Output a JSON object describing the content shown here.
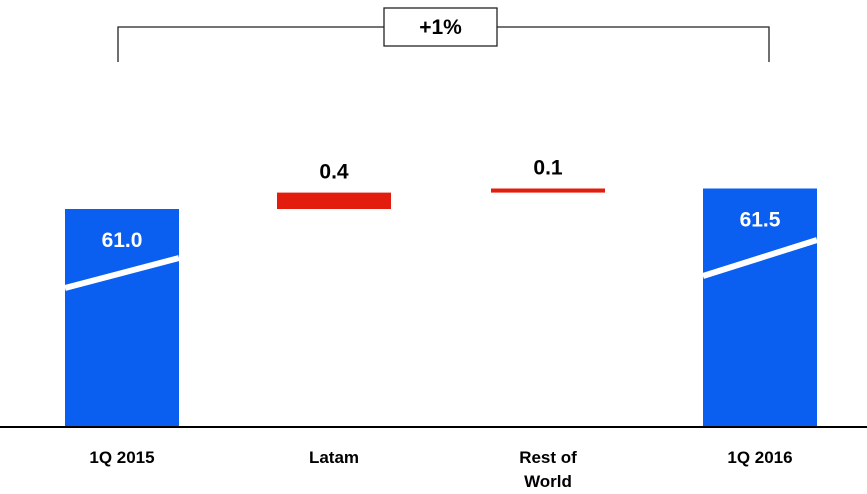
{
  "chart_data": {
    "type": "bar",
    "subtype": "waterfall",
    "categories": [
      "1Q 2015",
      "Latam",
      "Rest of\nWorld",
      "1Q 2016"
    ],
    "values": [
      61.0,
      0.4,
      0.1,
      61.5
    ],
    "value_labels": [
      "61.0",
      "0.4",
      "0.1",
      "61.5"
    ],
    "kinds": [
      "total",
      "delta",
      "delta",
      "total"
    ],
    "growth_label": "+1%",
    "colors": {
      "total": "#0a5ff0",
      "delta": "#e31d0e",
      "axis": "#000000",
      "bracket": "#222222"
    },
    "legend": "none",
    "grid": false
  }
}
